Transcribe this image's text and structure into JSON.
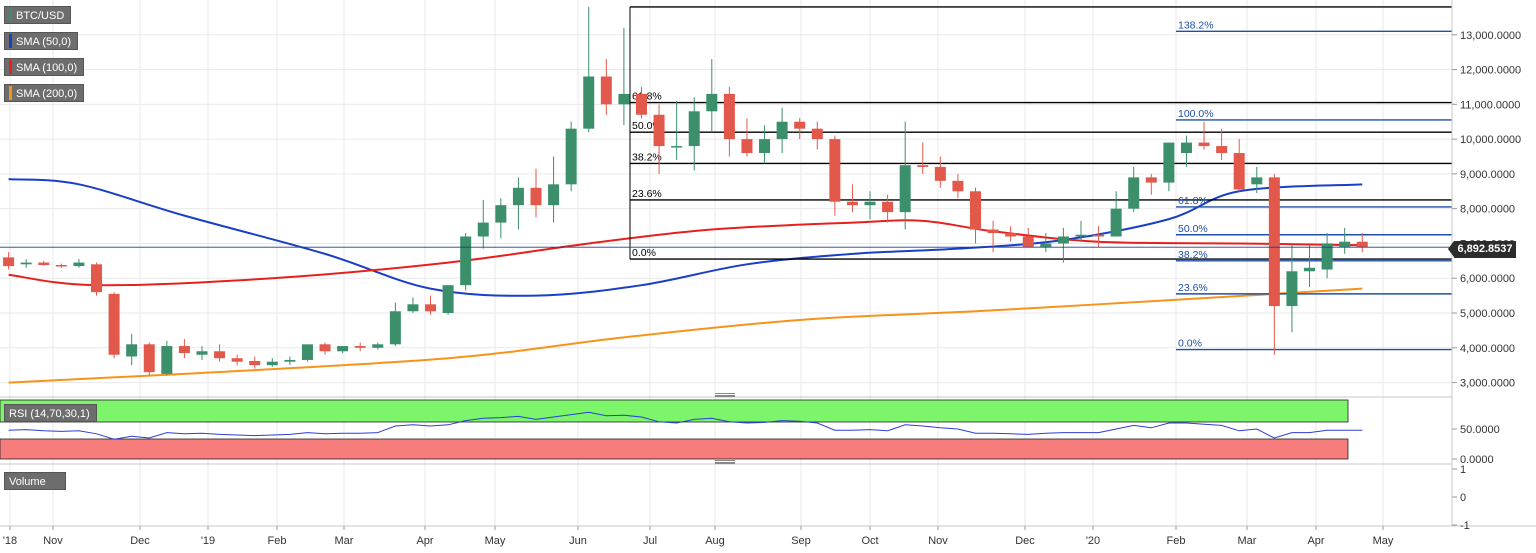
{
  "legends": {
    "symbol": "BTC/USD",
    "sma50": "SMA (50,0)",
    "sma100": "SMA (100,0)",
    "sma200": "SMA (200,0)",
    "rsi": "RSI (14,70,30,1)",
    "volume": "Volume"
  },
  "colors": {
    "up": "#3b8f6b",
    "down": "#e2594b",
    "sma50": "#1a3fc7",
    "sma100": "#e8201b",
    "sma200": "#f7931a",
    "rsi_overbought": "#7cf56b",
    "rsi_oversold": "#f77c7c",
    "rsi_line": "#2b3fd4",
    "fib_blue": "#1f4fa8"
  },
  "current_price": "6,892.8537",
  "chart_data": {
    "type": "candlestick",
    "price_axis": {
      "ticks": [
        3000,
        4000,
        5000,
        6000,
        7000,
        8000,
        9000,
        10000,
        11000,
        12000,
        13000
      ],
      "tick_labels": [
        "3,000.0000",
        "4,000.0000",
        "5,000.0000",
        "6,000.0000",
        "7,000.0000",
        "8,000.0000",
        "9,000.0000",
        "10,000.0000",
        "11,000.0000",
        "12,000.0000",
        "13,000.0000"
      ],
      "ylim": [
        2700,
        14000
      ],
      "last_price": 6892.8537
    },
    "time_axis": {
      "labels": [
        "'18",
        "Nov",
        "Dec",
        "'19",
        "Feb",
        "Mar",
        "Apr",
        "May",
        "Jun",
        "Jul",
        "Aug",
        "Sep",
        "Oct",
        "Nov",
        "Dec",
        "'20",
        "Feb",
        "Mar",
        "Apr",
        "May"
      ]
    },
    "candles_weekly_ohlc": [
      [
        6600,
        6750,
        6250,
        6350
      ],
      [
        6400,
        6550,
        6300,
        6450
      ],
      [
        6450,
        6500,
        6350,
        6380
      ],
      [
        6380,
        6420,
        6300,
        6350
      ],
      [
        6350,
        6550,
        6300,
        6450
      ],
      [
        6400,
        6450,
        5500,
        5600
      ],
      [
        5550,
        5600,
        3700,
        3800
      ],
      [
        3750,
        4400,
        3500,
        4100
      ],
      [
        4100,
        4150,
        3200,
        3300
      ],
      [
        3250,
        4200,
        3200,
        4050
      ],
      [
        4050,
        4250,
        3700,
        3850
      ],
      [
        3800,
        4050,
        3650,
        3900
      ],
      [
        3900,
        4100,
        3600,
        3700
      ],
      [
        3700,
        3800,
        3500,
        3600
      ],
      [
        3620,
        3750,
        3400,
        3500
      ],
      [
        3500,
        3700,
        3450,
        3600
      ],
      [
        3600,
        3750,
        3500,
        3650
      ],
      [
        3650,
        4000,
        3600,
        4100
      ],
      [
        4100,
        4150,
        3800,
        3900
      ],
      [
        3900,
        4050,
        3850,
        4050
      ],
      [
        4050,
        4150,
        3900,
        4000
      ],
      [
        4000,
        4150,
        3950,
        4100
      ],
      [
        4100,
        5300,
        4050,
        5050
      ],
      [
        5050,
        5450,
        5000,
        5250
      ],
      [
        5250,
        5500,
        4950,
        5050
      ],
      [
        5000,
        5750,
        4950,
        5800
      ],
      [
        5800,
        7300,
        5650,
        7200
      ],
      [
        7200,
        8250,
        6850,
        7600
      ],
      [
        7600,
        8300,
        7150,
        8100
      ],
      [
        8100,
        8900,
        7400,
        8600
      ],
      [
        8600,
        9150,
        7750,
        8100
      ],
      [
        8100,
        9500,
        7600,
        8700
      ],
      [
        8700,
        10500,
        8500,
        10300
      ],
      [
        10300,
        13800,
        10200,
        11800
      ],
      [
        11800,
        12300,
        10700,
        11000
      ],
      [
        11000,
        13200,
        10400,
        11300
      ],
      [
        11300,
        11500,
        10600,
        10700
      ],
      [
        10700,
        11000,
        9000,
        9800
      ],
      [
        9800,
        11100,
        9400,
        9800
      ],
      [
        9800,
        11200,
        9100,
        10800
      ],
      [
        10800,
        12300,
        10200,
        11300
      ],
      [
        11300,
        11500,
        9500,
        10000
      ],
      [
        10000,
        10600,
        9500,
        9600
      ],
      [
        9600,
        10400,
        9300,
        10000
      ],
      [
        10000,
        10900,
        9600,
        10500
      ],
      [
        10500,
        10600,
        10000,
        10300
      ],
      [
        10300,
        10500,
        9700,
        10000
      ],
      [
        10000,
        10100,
        7800,
        8200
      ],
      [
        8200,
        8700,
        7900,
        8100
      ],
      [
        8100,
        8500,
        7700,
        8200
      ],
      [
        8200,
        8400,
        7600,
        7900
      ],
      [
        7900,
        10500,
        7400,
        9250
      ],
      [
        9250,
        9900,
        9000,
        9200
      ],
      [
        9200,
        9500,
        8600,
        8800
      ],
      [
        8800,
        9000,
        8300,
        8500
      ],
      [
        8500,
        8600,
        7000,
        7400
      ],
      [
        7400,
        7650,
        6750,
        7300
      ],
      [
        7300,
        7500,
        7050,
        7200
      ],
      [
        7200,
        7450,
        6900,
        6900
      ],
      [
        6900,
        7300,
        6750,
        7000
      ],
      [
        7000,
        7450,
        6450,
        7200
      ],
      [
        7200,
        7650,
        7050,
        7250
      ],
      [
        7250,
        7500,
        6900,
        7200
      ],
      [
        7200,
        8500,
        7200,
        8000
      ],
      [
        8000,
        9200,
        7900,
        8900
      ],
      [
        8900,
        9000,
        8400,
        8750
      ],
      [
        8750,
        9700,
        8500,
        9900
      ],
      [
        9600,
        10100,
        9200,
        9900
      ],
      [
        9900,
        10500,
        9700,
        9800
      ],
      [
        9800,
        10300,
        9400,
        9600
      ],
      [
        9600,
        10000,
        8500,
        8550
      ],
      [
        8700,
        9200,
        8450,
        8900
      ],
      [
        8900,
        9000,
        3800,
        5200
      ],
      [
        5200,
        6950,
        4450,
        6200
      ],
      [
        6200,
        6950,
        5750,
        6300
      ],
      [
        6250,
        7300,
        6000,
        7000
      ],
      [
        6900,
        7450,
        6700,
        7050
      ],
      [
        7050,
        7300,
        6750,
        6892
      ]
    ],
    "sma_series": [
      {
        "name": "SMA (50,0)",
        "anchors": [
          [
            0,
            8850
          ],
          [
            4,
            8700
          ],
          [
            10,
            7800
          ],
          [
            18,
            6700
          ],
          [
            24,
            5700
          ],
          [
            30,
            5500
          ],
          [
            36,
            5800
          ],
          [
            42,
            6400
          ],
          [
            48,
            6700
          ],
          [
            54,
            6850
          ],
          [
            60,
            7100
          ],
          [
            66,
            7700
          ],
          [
            70,
            8500
          ],
          [
            77,
            8700
          ]
        ]
      },
      {
        "name": "SMA (100,0)",
        "anchors": [
          [
            0,
            6100
          ],
          [
            5,
            5800
          ],
          [
            15,
            6000
          ],
          [
            25,
            6450
          ],
          [
            33,
            7000
          ],
          [
            40,
            7400
          ],
          [
            48,
            7600
          ],
          [
            52,
            7650
          ],
          [
            56,
            7350
          ],
          [
            62,
            7050
          ],
          [
            70,
            7000
          ],
          [
            77,
            6950
          ]
        ]
      },
      {
        "name": "SMA (200,0)",
        "anchors": [
          [
            0,
            3000
          ],
          [
            10,
            3250
          ],
          [
            25,
            3700
          ],
          [
            35,
            4300
          ],
          [
            45,
            4800
          ],
          [
            55,
            5050
          ],
          [
            62,
            5250
          ],
          [
            72,
            5550
          ],
          [
            77,
            5700
          ]
        ]
      }
    ],
    "fib_retracement_1": {
      "levels": [
        {
          "label": "",
          "price": 13800
        },
        {
          "label": "61.8%",
          "price": 11050
        },
        {
          "label": "50.0%",
          "price": 10200
        },
        {
          "label": "38.2%",
          "price": 9300
        },
        {
          "label": "23.6%",
          "price": 8250
        },
        {
          "label": "0.0%",
          "price": 6550
        }
      ]
    },
    "fib_retracement_2": {
      "levels": [
        {
          "label": "138.2%",
          "price": 13100
        },
        {
          "label": "100.0%",
          "price": 10550
        },
        {
          "label": "61.8%",
          "price": 8050
        },
        {
          "label": "50.0%",
          "price": 7250
        },
        {
          "label": "38.2%",
          "price": 6500
        },
        {
          "label": "23.6%",
          "price": 5550
        },
        {
          "label": "0.0%",
          "price": 3950
        }
      ]
    },
    "rsi": {
      "ticks": [
        0,
        50
      ],
      "tick_labels": [
        "0.0000",
        "50.0000"
      ],
      "overbought": 70,
      "oversold": 30,
      "values": [
        48,
        49,
        47,
        46,
        47,
        42,
        33,
        38,
        35,
        44,
        42,
        43,
        41,
        40,
        39,
        40,
        41,
        44,
        42,
        43,
        43,
        44,
        55,
        57,
        55,
        57,
        64,
        68,
        69,
        71,
        66,
        70,
        74,
        78,
        72,
        73,
        70,
        62,
        60,
        66,
        68,
        62,
        60,
        61,
        64,
        63,
        60,
        48,
        48,
        49,
        47,
        57,
        55,
        52,
        50,
        43,
        43,
        42,
        41,
        43,
        44,
        44,
        44,
        50,
        56,
        52,
        60,
        60,
        58,
        56,
        47,
        50,
        35,
        44,
        44,
        48,
        48,
        48
      ]
    },
    "volume": {
      "ticks": [
        1,
        0,
        -1
      ],
      "tick_labels": [
        "1",
        "0",
        "-1"
      ]
    }
  }
}
